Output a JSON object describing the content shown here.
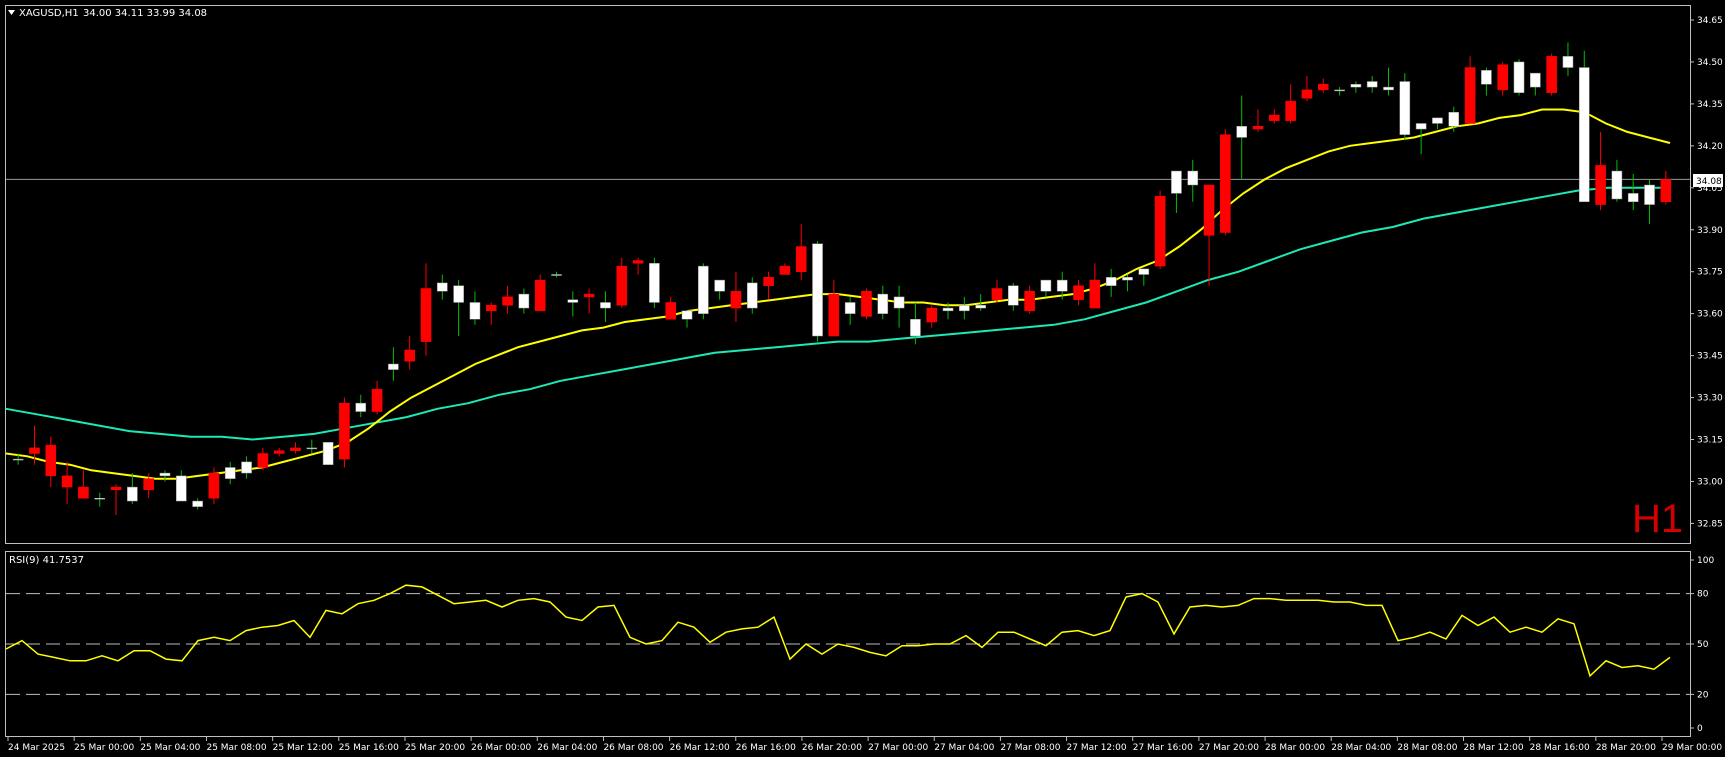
{
  "header": {
    "symbol": "XAGUSD,H1",
    "ohlc": "34.00 34.11 33.99 34.08"
  },
  "timeframe_badge": "H1",
  "current_price_label": "34.08",
  "rsi_header": "RSI(9) 41.7537",
  "colors": {
    "background": "#000000",
    "frame": "#c0c0c0",
    "bull": "#ffffff",
    "bear": "#ff0000",
    "ma_fast": "#ffff00",
    "ma_slow": "#1de9b6",
    "rsi_line": "#ffff00",
    "timeframe": "#d40000"
  },
  "chart_data": [
    {
      "type": "candlestick",
      "symbol": "XAGUSD",
      "timeframe": "H1",
      "ylim": [
        32.78,
        34.7
      ],
      "yticks": [
        34.65,
        34.5,
        34.35,
        34.2,
        34.05,
        33.9,
        33.75,
        33.6,
        33.45,
        33.3,
        33.15,
        33.0,
        32.85
      ],
      "current_price": 34.08,
      "x_labels": [
        "24 Mar 2025",
        "25 Mar 00:00",
        "25 Mar 04:00",
        "25 Mar 08:00",
        "25 Mar 12:00",
        "25 Mar 16:00",
        "25 Mar 20:00",
        "26 Mar 00:00",
        "26 Mar 04:00",
        "26 Mar 08:00",
        "26 Mar 12:00",
        "26 Mar 16:00",
        "26 Mar 20:00",
        "27 Mar 00:00",
        "27 Mar 04:00",
        "27 Mar 08:00",
        "27 Mar 12:00",
        "27 Mar 16:00",
        "27 Mar 20:00",
        "28 Mar 00:00",
        "28 Mar 04:00",
        "28 Mar 08:00",
        "28 Mar 12:00",
        "28 Mar 16:00",
        "28 Mar 20:00",
        "29 Mar 00:00"
      ],
      "candles": [
        [
          33.08,
          33.1,
          33.06,
          33.08
        ],
        [
          33.12,
          33.2,
          33.06,
          33.1
        ],
        [
          33.13,
          33.16,
          32.98,
          33.02
        ],
        [
          33.02,
          33.07,
          32.92,
          32.98
        ],
        [
          32.98,
          33.04,
          32.94,
          32.94
        ],
        [
          32.94,
          32.96,
          32.91,
          32.94
        ],
        [
          32.98,
          32.99,
          32.88,
          32.97
        ],
        [
          32.93,
          33.03,
          32.92,
          32.98
        ],
        [
          33.01,
          33.03,
          32.94,
          32.97
        ],
        [
          33.02,
          33.04,
          33.0,
          33.03
        ],
        [
          32.93,
          33.04,
          32.93,
          33.02
        ],
        [
          32.91,
          32.94,
          32.9,
          32.93
        ],
        [
          33.03,
          33.05,
          32.92,
          32.94
        ],
        [
          33.01,
          33.07,
          32.99,
          33.05
        ],
        [
          33.03,
          33.09,
          33.01,
          33.07
        ],
        [
          33.1,
          33.12,
          33.04,
          33.05
        ],
        [
          33.11,
          33.12,
          33.09,
          33.1
        ],
        [
          33.12,
          33.14,
          33.1,
          33.11
        ],
        [
          33.12,
          33.15,
          33.1,
          33.12
        ],
        [
          33.06,
          33.14,
          33.06,
          33.14
        ],
        [
          33.28,
          33.3,
          33.05,
          33.08
        ],
        [
          33.25,
          33.31,
          33.23,
          33.28
        ],
        [
          33.33,
          33.36,
          33.24,
          33.25
        ],
        [
          33.4,
          33.48,
          33.36,
          33.42
        ],
        [
          33.47,
          33.52,
          33.4,
          33.43
        ],
        [
          33.69,
          33.78,
          33.45,
          33.5
        ],
        [
          33.68,
          33.74,
          33.65,
          33.71
        ],
        [
          33.64,
          33.72,
          33.52,
          33.7
        ],
        [
          33.58,
          33.68,
          33.56,
          33.64
        ],
        [
          33.63,
          33.64,
          33.56,
          33.61
        ],
        [
          33.66,
          33.7,
          33.6,
          33.63
        ],
        [
          33.62,
          33.69,
          33.6,
          33.67
        ],
        [
          33.72,
          33.74,
          33.61,
          33.61
        ],
        [
          33.74,
          33.75,
          33.73,
          33.74
        ],
        [
          33.64,
          33.68,
          33.59,
          33.65
        ],
        [
          33.67,
          33.69,
          33.6,
          33.66
        ],
        [
          33.62,
          33.68,
          33.57,
          33.64
        ],
        [
          33.77,
          33.8,
          33.62,
          33.63
        ],
        [
          33.79,
          33.8,
          33.74,
          33.78
        ],
        [
          33.64,
          33.8,
          33.62,
          33.78
        ],
        [
          33.64,
          33.66,
          33.59,
          33.58
        ],
        [
          33.58,
          33.6,
          33.55,
          33.61
        ],
        [
          33.6,
          33.78,
          33.58,
          33.77
        ],
        [
          33.68,
          33.72,
          33.65,
          33.72
        ],
        [
          33.68,
          33.75,
          33.57,
          33.62
        ],
        [
          33.62,
          33.73,
          33.6,
          33.71
        ],
        [
          33.73,
          33.75,
          33.65,
          33.7
        ],
        [
          33.77,
          33.78,
          33.75,
          33.74
        ],
        [
          33.84,
          33.92,
          33.72,
          33.75
        ],
        [
          33.52,
          33.86,
          33.5,
          33.85
        ],
        [
          33.67,
          33.72,
          33.52,
          33.52
        ],
        [
          33.6,
          33.66,
          33.56,
          33.64
        ],
        [
          33.68,
          33.69,
          33.58,
          33.59
        ],
        [
          33.6,
          33.7,
          33.58,
          33.67
        ],
        [
          33.62,
          33.7,
          33.55,
          33.66
        ],
        [
          33.52,
          33.64,
          33.49,
          33.58
        ],
        [
          33.62,
          33.63,
          33.55,
          33.57
        ],
        [
          33.61,
          33.64,
          33.58,
          33.62
        ],
        [
          33.61,
          33.66,
          33.58,
          33.63
        ],
        [
          33.62,
          33.67,
          33.61,
          33.63
        ],
        [
          33.69,
          33.72,
          33.64,
          33.65
        ],
        [
          33.63,
          33.71,
          33.61,
          33.7
        ],
        [
          33.68,
          33.7,
          33.6,
          33.61
        ],
        [
          33.68,
          33.71,
          33.66,
          33.72
        ],
        [
          33.68,
          33.75,
          33.65,
          33.72
        ],
        [
          33.7,
          33.72,
          33.63,
          33.65
        ],
        [
          33.72,
          33.78,
          33.62,
          33.62
        ],
        [
          33.7,
          33.76,
          33.66,
          33.73
        ],
        [
          33.72,
          33.74,
          33.68,
          33.73
        ],
        [
          33.74,
          33.76,
          33.7,
          33.76
        ],
        [
          34.02,
          34.04,
          33.76,
          33.77
        ],
        [
          34.03,
          34.1,
          33.96,
          34.11
        ],
        [
          34.06,
          34.15,
          34.0,
          34.11
        ],
        [
          34.06,
          34.06,
          33.7,
          33.88
        ],
        [
          34.24,
          34.26,
          33.88,
          33.89
        ],
        [
          34.23,
          34.38,
          34.08,
          34.27
        ],
        [
          34.27,
          34.33,
          34.25,
          34.26
        ],
        [
          34.31,
          34.33,
          34.28,
          34.29
        ],
        [
          34.36,
          34.42,
          34.28,
          34.29
        ],
        [
          34.4,
          34.45,
          34.36,
          34.37
        ],
        [
          34.42,
          34.44,
          34.39,
          34.4
        ],
        [
          34.4,
          34.41,
          34.38,
          34.4
        ],
        [
          34.41,
          34.43,
          34.39,
          34.42
        ],
        [
          34.41,
          34.45,
          34.39,
          34.43
        ],
        [
          34.4,
          34.48,
          34.38,
          34.41
        ],
        [
          34.24,
          34.46,
          34.22,
          34.43
        ],
        [
          34.26,
          34.28,
          34.17,
          34.28
        ],
        [
          34.28,
          34.3,
          34.26,
          34.3
        ],
        [
          34.27,
          34.34,
          34.25,
          34.32
        ],
        [
          34.48,
          34.52,
          34.28,
          34.28
        ],
        [
          34.42,
          34.48,
          34.38,
          34.47
        ],
        [
          34.49,
          34.5,
          34.38,
          34.4
        ],
        [
          34.39,
          34.51,
          34.38,
          34.5
        ],
        [
          34.41,
          34.45,
          34.38,
          34.46
        ],
        [
          34.52,
          34.53,
          34.38,
          34.39
        ],
        [
          34.48,
          34.57,
          34.45,
          34.52
        ],
        [
          34.0,
          34.54,
          34.0,
          34.48
        ],
        [
          34.13,
          34.25,
          33.97,
          33.99
        ],
        [
          34.01,
          34.15,
          34.0,
          34.11
        ],
        [
          34.0,
          34.1,
          33.97,
          34.03
        ],
        [
          33.99,
          34.08,
          33.92,
          34.06
        ],
        [
          34.08,
          34.11,
          33.99,
          34.0
        ]
      ],
      "ma_fast": [
        33.1,
        33.09,
        33.07,
        33.06,
        33.04,
        33.03,
        33.02,
        33.01,
        33.01,
        33.02,
        33.03,
        33.04,
        33.05,
        33.07,
        33.09,
        33.11,
        33.14,
        33.19,
        33.25,
        33.3,
        33.34,
        33.38,
        33.42,
        33.45,
        33.48,
        33.5,
        33.52,
        33.54,
        33.55,
        33.57,
        33.58,
        33.59,
        33.61,
        33.62,
        33.63,
        33.64,
        33.65,
        33.66,
        33.67,
        33.67,
        33.66,
        33.65,
        33.64,
        33.64,
        33.63,
        33.63,
        33.64,
        33.65,
        33.65,
        33.66,
        33.67,
        33.69,
        33.72,
        33.76,
        33.79,
        33.84,
        33.9,
        33.97,
        34.03,
        34.08,
        34.12,
        34.15,
        34.18,
        34.2,
        34.21,
        34.22,
        34.23,
        34.25,
        34.27,
        34.28,
        34.3,
        34.31,
        34.33,
        34.33,
        34.32,
        34.28,
        34.25,
        34.23,
        34.21
      ],
      "ma_fast_start_index": 0,
      "ma_slow": [
        33.26,
        33.24,
        33.22,
        33.2,
        33.18,
        33.17,
        33.16,
        33.16,
        33.15,
        33.16,
        33.17,
        33.19,
        33.21,
        33.23,
        33.26,
        33.28,
        33.31,
        33.33,
        33.36,
        33.38,
        33.4,
        33.42,
        33.44,
        33.46,
        33.47,
        33.48,
        33.49,
        33.5,
        33.5,
        33.51,
        33.52,
        33.53,
        33.54,
        33.55,
        33.56,
        33.58,
        33.61,
        33.64,
        33.68,
        33.72,
        33.75,
        33.79,
        33.83,
        33.86,
        33.89,
        33.91,
        33.94,
        33.96,
        33.98,
        34.0,
        34.02,
        34.04,
        34.05,
        34.05,
        34.05
      ],
      "ma_slow_start_index": 0
    },
    {
      "type": "line",
      "name": "RSI(9)",
      "ylim": [
        0,
        100
      ],
      "yticks": [
        100,
        80,
        50,
        20,
        0
      ],
      "levels": [
        80,
        50,
        20
      ],
      "values": [
        47,
        52,
        44,
        42,
        40,
        40,
        43,
        40,
        46,
        46,
        41,
        40,
        52,
        54,
        52,
        58,
        60,
        61,
        64,
        54,
        70,
        68,
        74,
        76,
        80,
        85,
        84,
        79,
        74,
        75,
        76,
        72,
        76,
        77,
        75,
        66,
        64,
        72,
        73,
        54,
        50,
        52,
        63,
        60,
        51,
        57,
        59,
        60,
        66,
        41,
        50,
        44,
        50,
        48,
        45,
        43,
        49,
        49,
        50,
        50,
        55,
        48,
        57,
        57,
        53,
        49,
        57,
        58,
        55,
        58,
        78,
        80,
        75,
        56,
        72,
        73,
        72,
        73,
        77,
        77,
        76,
        76,
        76,
        75,
        75,
        73,
        73,
        52,
        54,
        57,
        53,
        67,
        61,
        66,
        57,
        60,
        57,
        65,
        62,
        31,
        40,
        36,
        37,
        35,
        42
      ]
    }
  ]
}
